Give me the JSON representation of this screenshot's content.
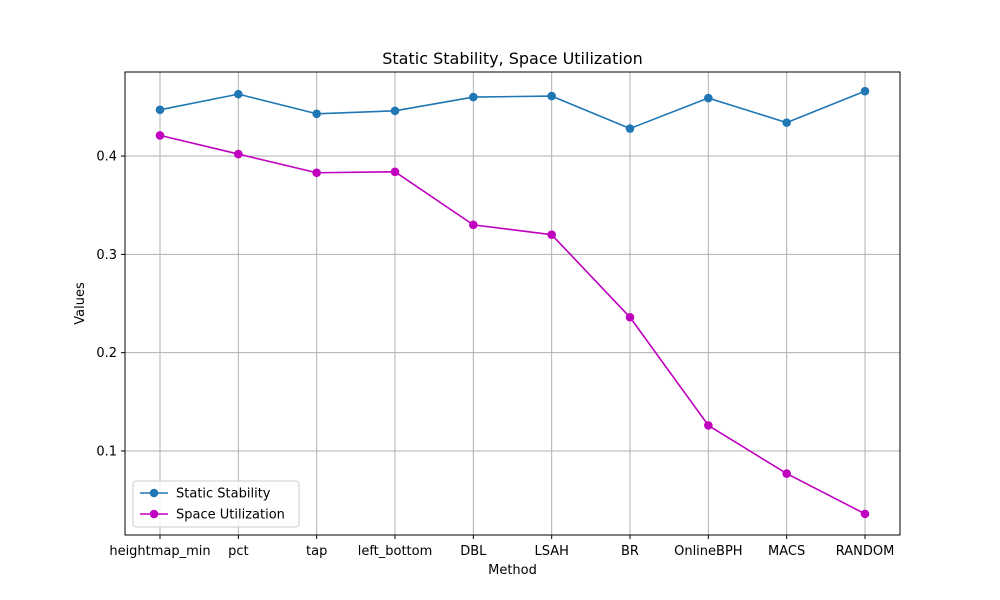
{
  "chart_data": {
    "type": "line",
    "title": "Static Stability, Space Utilization",
    "xlabel": "Method",
    "ylabel": "Values",
    "categories": [
      "heightmap_min",
      "pct",
      "tap",
      "left_bottom",
      "DBL",
      "LSAH",
      "BR",
      "OnlineBPH",
      "MACS",
      "RANDOM"
    ],
    "ylim": [
      0.0145,
      0.4855
    ],
    "yticks": [
      0.1,
      0.2,
      0.3,
      0.4
    ],
    "ytick_labels": [
      "0.1",
      "0.2",
      "0.3",
      "0.4"
    ],
    "grid": true,
    "legend_position": "lower-left",
    "series": [
      {
        "name": "Static Stability",
        "color": "#1f77b4",
        "marker": "circle",
        "values": [
          0.447,
          0.463,
          0.443,
          0.446,
          0.46,
          0.461,
          0.428,
          0.459,
          0.434,
          0.466
        ]
      },
      {
        "name": "Space Utilization",
        "color": "#bf00bf",
        "marker": "circle",
        "values": [
          0.421,
          0.402,
          0.383,
          0.384,
          0.33,
          0.32,
          0.236,
          0.126,
          0.077,
          0.036
        ]
      }
    ]
  }
}
